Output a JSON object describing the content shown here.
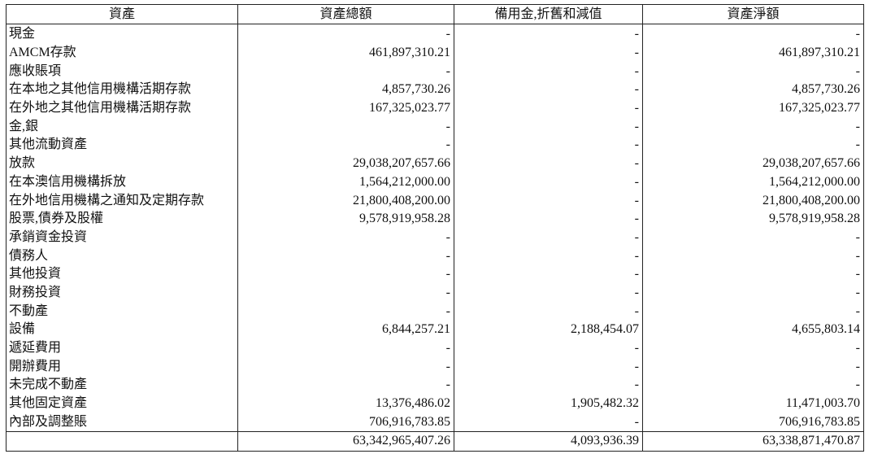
{
  "headers": [
    "資產",
    "資產總額",
    "備用金,折舊和減值",
    "資產淨額"
  ],
  "rows": [
    {
      "label": "現金",
      "gross": "-",
      "provision": "-",
      "net": "-"
    },
    {
      "label": "AMCM存款",
      "gross": "461,897,310.21",
      "provision": "-",
      "net": "461,897,310.21"
    },
    {
      "label": "應收賬項",
      "gross": "-",
      "provision": "-",
      "net": "-"
    },
    {
      "label": "在本地之其他信用機構活期存款",
      "gross": "4,857,730.26",
      "provision": "-",
      "net": "4,857,730.26"
    },
    {
      "label": "在外地之其他信用機構活期存款",
      "gross": "167,325,023.77",
      "provision": "-",
      "net": "167,325,023.77"
    },
    {
      "label": "金,銀",
      "gross": "-",
      "provision": "-",
      "net": "-"
    },
    {
      "label": "其他流動資產",
      "gross": "-",
      "provision": "-",
      "net": "-"
    },
    {
      "label": "放款",
      "gross": "29,038,207,657.66",
      "provision": "-",
      "net": "29,038,207,657.66"
    },
    {
      "label": "在本澳信用機構拆放",
      "gross": "1,564,212,000.00",
      "provision": "-",
      "net": "1,564,212,000.00"
    },
    {
      "label": "在外地信用機構之通知及定期存款",
      "gross": "21,800,408,200.00",
      "provision": "-",
      "net": "21,800,408,200.00"
    },
    {
      "label": "股票,債券及股權",
      "gross": "9,578,919,958.28",
      "provision": "-",
      "net": "9,578,919,958.28"
    },
    {
      "label": "承銷資金投資",
      "gross": "-",
      "provision": "-",
      "net": "-"
    },
    {
      "label": "債務人",
      "gross": "-",
      "provision": "-",
      "net": "-"
    },
    {
      "label": "其他投資",
      "gross": "-",
      "provision": "-",
      "net": "-"
    },
    {
      "label": "財務投資",
      "gross": "-",
      "provision": "-",
      "net": "-"
    },
    {
      "label": "不動產",
      "gross": "-",
      "provision": "-",
      "net": "-"
    },
    {
      "label": "設備",
      "gross": "6,844,257.21",
      "provision": "2,188,454.07",
      "net": "4,655,803.14"
    },
    {
      "label": "遞延費用",
      "gross": "-",
      "provision": "-",
      "net": "-"
    },
    {
      "label": "開辦費用",
      "gross": "-",
      "provision": "-",
      "net": "-"
    },
    {
      "label": "未完成不動產",
      "gross": "-",
      "provision": "-",
      "net": "-"
    },
    {
      "label": "其他固定資產",
      "gross": "13,376,486.02",
      "provision": "1,905,482.32",
      "net": "11,471,003.70"
    },
    {
      "label": "內部及調整賬",
      "gross": "706,916,783.85",
      "provision": "-",
      "net": "706,916,783.85"
    }
  ],
  "total": {
    "label": "",
    "gross": "63,342,965,407.26",
    "provision": "4,093,936.39",
    "net": "63,338,871,470.87"
  }
}
